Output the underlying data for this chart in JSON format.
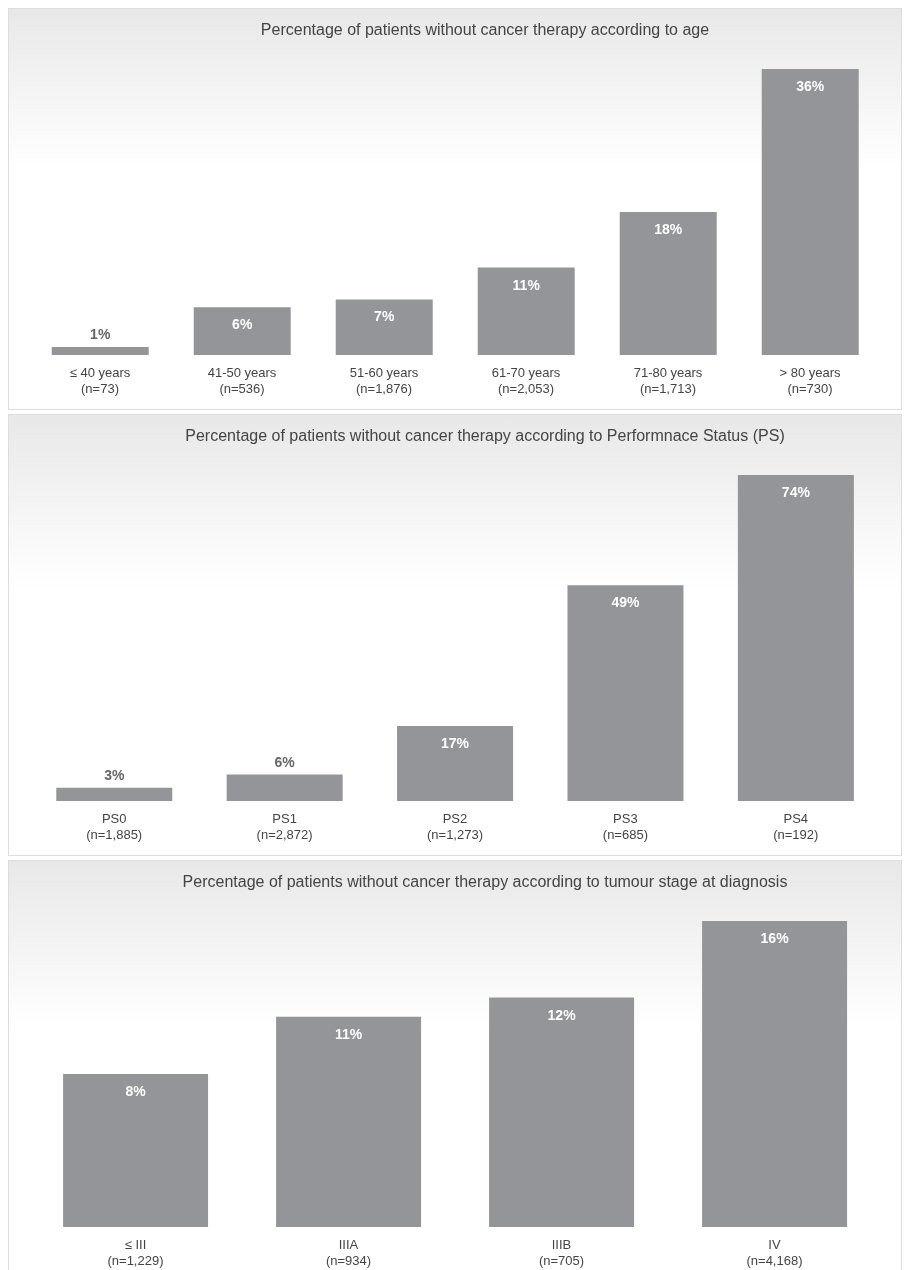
{
  "chart_data": [
    {
      "type": "bar",
      "title": "Percentage of patients without cancer therapy according to age",
      "categories": [
        "≤ 40 years\n(n=73)",
        "41-50 years\n(n=536)",
        "51-60 years\n(n=1,876)",
        "61-70 years\n(n=2,053)",
        "71-80 years\n(n=1,713)",
        "> 80 years\n(n=730)"
      ],
      "values": [
        1,
        6,
        7,
        11,
        18,
        36
      ],
      "color": "#939598",
      "data_labels": true,
      "value_labels": [
        "1%",
        "6%",
        "7%",
        "11%",
        "18%",
        "36%"
      ]
    },
    {
      "type": "bar",
      "title": "Percentage of patients without cancer therapy according to Performnace Status (PS)",
      "categories": [
        "PS0\n(n=1,885)",
        "PS1\n(n=2,872)",
        "PS2\n(n=1,273)",
        "PS3\n(n=685)",
        "PS4\n(n=192)"
      ],
      "values": [
        3,
        6,
        17,
        49,
        74
      ],
      "color": "#939598",
      "data_labels": true,
      "value_labels": [
        "3%",
        "6%",
        "17%",
        "49%",
        "74%"
      ]
    },
    {
      "type": "bar",
      "title": "Percentage of patients without cancer therapy according to tumour stage at diagnosis",
      "categories": [
        "≤ III\n(n=1,229)",
        "IIIA\n(n=934)",
        "IIIB\n(n=705)",
        "IV\n(n=4,168)"
      ],
      "values": [
        8,
        11,
        12,
        16
      ],
      "color": "#939598",
      "data_labels": true,
      "value_labels": [
        "8%",
        "11%",
        "12%",
        "16%"
      ]
    }
  ]
}
